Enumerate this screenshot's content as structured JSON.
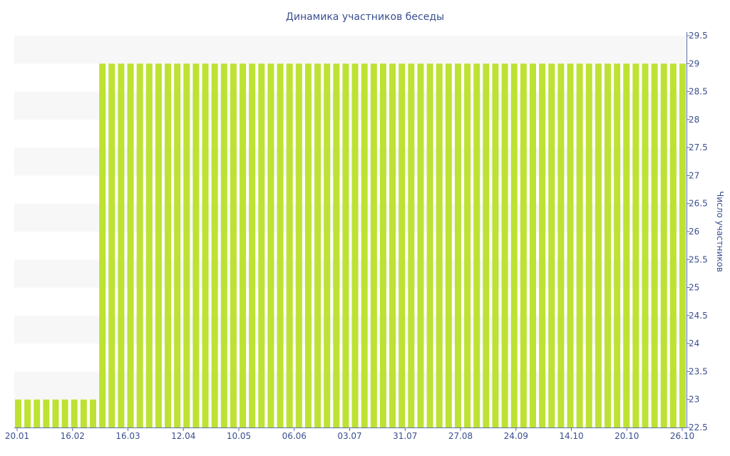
{
  "chart_data": {
    "type": "bar",
    "title": "Динамика участников беседы",
    "xlabel": "",
    "ylabel": "Число участников",
    "ylim": [
      22.5,
      29.5
    ],
    "yticks": [
      "22.5",
      "23",
      "23.5",
      "24",
      "24.5",
      "25",
      "25.5",
      "26",
      "26.5",
      "27",
      "27.5",
      "28",
      "28.5",
      "29",
      "29.5"
    ],
    "xtick_labels": [
      "20.01",
      "16.02",
      "16.03",
      "12.04",
      "10.05",
      "06.06",
      "03.07",
      "31.07",
      "27.08",
      "24.09",
      "14.10",
      "20.10",
      "26.10"
    ],
    "values": [
      23,
      23,
      23,
      23,
      23,
      23,
      23,
      23,
      23,
      29,
      29,
      29,
      29,
      29,
      29,
      29,
      29,
      29,
      29,
      29,
      29,
      29,
      29,
      29,
      29,
      29,
      29,
      29,
      29,
      29,
      29,
      29,
      29,
      29,
      29,
      29,
      29,
      29,
      29,
      29,
      29,
      29,
      29,
      29,
      29,
      29,
      29,
      29,
      29,
      29,
      29,
      29,
      29,
      29,
      29,
      29,
      29,
      29,
      29,
      29,
      29,
      29,
      29,
      29,
      29,
      29,
      29,
      29,
      29,
      29,
      29,
      29
    ],
    "bar_color": "#bde233",
    "band_color": "#f7f7f7",
    "axis_color": "#5a6fa8",
    "text_color": "#3a4f8f",
    "yaxis_position": "right",
    "grid": "alternating bands"
  }
}
